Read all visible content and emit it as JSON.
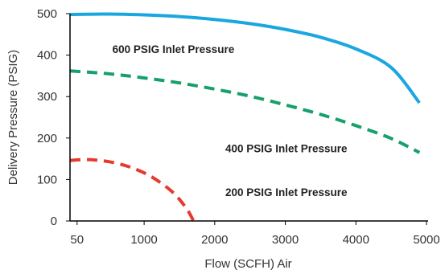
{
  "chart_data": {
    "type": "line",
    "xlabel": "Flow (SCFH) Air",
    "ylabel": "Delivery Pressure (PSIG)",
    "xlim": [
      -50,
      5000
    ],
    "ylim": [
      0,
      500
    ],
    "x_ticks": [
      50,
      1000,
      2000,
      3000,
      4000,
      5000
    ],
    "y_ticks": [
      0,
      100,
      200,
      300,
      400,
      500
    ],
    "x_tick_labels": [
      "50",
      "1000",
      "2000",
      "3000",
      "4000",
      "5000"
    ],
    "y_tick_labels": [
      "0",
      "100",
      "200",
      "300",
      "400",
      "500"
    ],
    "grid": false,
    "series": [
      {
        "name": "600 PSIG Inlet Pressure",
        "color": "#1aa7e0",
        "style": "solid",
        "points": [
          {
            "x": -50,
            "y": 498
          },
          {
            "x": 500,
            "y": 499
          },
          {
            "x": 1000,
            "y": 497
          },
          {
            "x": 1500,
            "y": 493
          },
          {
            "x": 2000,
            "y": 486
          },
          {
            "x": 2500,
            "y": 476
          },
          {
            "x": 3000,
            "y": 462
          },
          {
            "x": 3500,
            "y": 443
          },
          {
            "x": 4000,
            "y": 415
          },
          {
            "x": 4500,
            "y": 370
          },
          {
            "x": 4900,
            "y": 285
          }
        ]
      },
      {
        "name": "400 PSIG Inlet Pressure",
        "color": "#16a06a",
        "style": "dashed",
        "points": [
          {
            "x": -50,
            "y": 362
          },
          {
            "x": 500,
            "y": 355
          },
          {
            "x": 1000,
            "y": 345
          },
          {
            "x": 1500,
            "y": 333
          },
          {
            "x": 2000,
            "y": 318
          },
          {
            "x": 2500,
            "y": 301
          },
          {
            "x": 3000,
            "y": 280
          },
          {
            "x": 3500,
            "y": 257
          },
          {
            "x": 4000,
            "y": 230
          },
          {
            "x": 4500,
            "y": 199
          },
          {
            "x": 4900,
            "y": 165
          }
        ]
      },
      {
        "name": "200 PSIG Inlet Pressure",
        "color": "#e63a2e",
        "style": "dashed",
        "points": [
          {
            "x": -50,
            "y": 146
          },
          {
            "x": 200,
            "y": 148
          },
          {
            "x": 500,
            "y": 143
          },
          {
            "x": 800,
            "y": 130
          },
          {
            "x": 1100,
            "y": 107
          },
          {
            "x": 1400,
            "y": 70
          },
          {
            "x": 1600,
            "y": 30
          },
          {
            "x": 1700,
            "y": 0
          }
        ]
      }
    ],
    "annotations": [
      {
        "text": "600 PSIG Inlet Pressure",
        "x": 550,
        "y": 415
      },
      {
        "text": "400 PSIG Inlet Pressure",
        "x": 2150,
        "y": 175
      },
      {
        "text": "200 PSIG Inlet Pressure",
        "x": 2150,
        "y": 70
      }
    ]
  }
}
